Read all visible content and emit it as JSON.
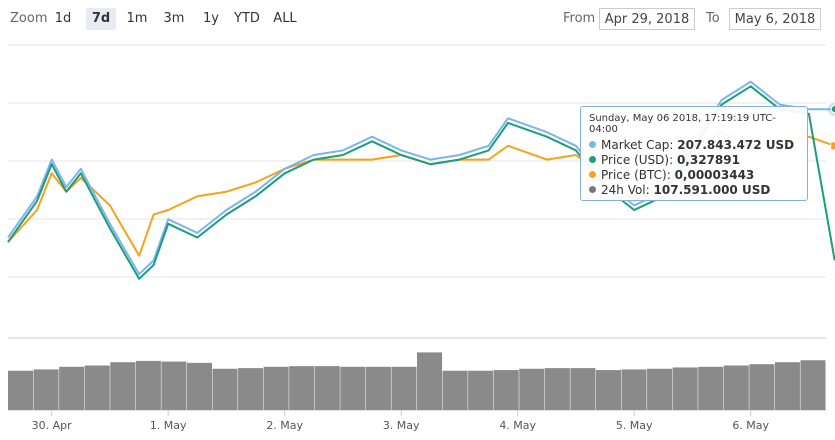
{
  "toolbar": {
    "zoom_label": "Zoom",
    "zoom_buttons": [
      "1d",
      "7d",
      "1m",
      "3m",
      "1y",
      "YTD",
      "ALL"
    ],
    "active": "7d",
    "from_label": "From",
    "from_value": "Apr 29, 2018",
    "to_label": "To",
    "to_value": "May 6, 2018"
  },
  "tooltip": {
    "header": "Sunday, May 06 2018, 17:19:19 UTC-04:00",
    "rows": [
      {
        "color": "#7cb5ec",
        "label": "Market Cap",
        "value": "207.843.472 USD"
      },
      {
        "color": "#1a9e7c",
        "label": "Price (USD)",
        "value": "0,327891"
      },
      {
        "color": "#f7a21b",
        "label": "Price (BTC)",
        "value": "0,00003443"
      },
      {
        "color": "#777777",
        "label": "24h Vol",
        "value": "107.591.000 USD"
      }
    ]
  },
  "chart_data": {
    "type": "line",
    "x_tick_labels": [
      "30. Apr",
      "1. May",
      "2. May",
      "3. May",
      "4. May",
      "5. May",
      "6. May"
    ],
    "x": [
      "2018-04-29T15:00",
      "2018-04-29T21:00",
      "2018-04-30T00:00",
      "2018-04-30T03:00",
      "2018-04-30T06:00",
      "2018-04-30T12:00",
      "2018-04-30T18:00",
      "2018-04-30T21:00",
      "2018-05-01T00:00",
      "2018-05-01T06:00",
      "2018-05-01T12:00",
      "2018-05-01T18:00",
      "2018-05-02T00:00",
      "2018-05-02T06:00",
      "2018-05-02T12:00",
      "2018-05-02T18:00",
      "2018-05-03T00:00",
      "2018-05-03T06:00",
      "2018-05-03T12:00",
      "2018-05-03T18:00",
      "2018-05-03T22:00",
      "2018-05-04T06:00",
      "2018-05-04T12:00",
      "2018-05-04T18:00",
      "2018-05-05T00:00",
      "2018-05-05T06:00",
      "2018-05-05T12:00",
      "2018-05-05T18:00",
      "2018-05-06T00:00",
      "2018-05-06T06:00",
      "2018-05-06T12:00",
      "2018-05-06T17:19"
    ],
    "series": [
      {
        "name": "Market Cap",
        "color": "#7cb5ec",
        "values": [
          0.38,
          0.47,
          0.55,
          0.49,
          0.53,
          0.41,
          0.3,
          0.33,
          0.42,
          0.39,
          0.44,
          0.48,
          0.53,
          0.56,
          0.57,
          0.6,
          0.57,
          0.55,
          0.56,
          0.58,
          0.64,
          0.61,
          0.58,
          0.5,
          0.45,
          0.48,
          0.58,
          0.68,
          0.72,
          0.67,
          0.66,
          0.66
        ]
      },
      {
        "name": "Price (USD)",
        "color": "#1a9e7c",
        "values": [
          0.37,
          0.46,
          0.54,
          0.48,
          0.52,
          0.4,
          0.29,
          0.32,
          0.41,
          0.38,
          0.43,
          0.47,
          0.52,
          0.55,
          0.56,
          0.59,
          0.56,
          0.54,
          0.55,
          0.57,
          0.63,
          0.6,
          0.57,
          0.49,
          0.44,
          0.47,
          0.57,
          0.67,
          0.71,
          0.66,
          0.65,
          0.33
        ]
      },
      {
        "name": "Price (BTC)",
        "color": "#f7a21b",
        "values": [
          0.37,
          0.44,
          0.52,
          0.48,
          0.51,
          0.45,
          0.34,
          0.43,
          0.44,
          0.47,
          0.48,
          0.5,
          0.53,
          0.55,
          0.55,
          0.55,
          0.56,
          0.54,
          0.55,
          0.55,
          0.58,
          0.55,
          0.56,
          0.51,
          0.46,
          0.49,
          0.57,
          0.61,
          0.58,
          0.59,
          0.6,
          0.58
        ]
      },
      {
        "name": "24h Vol",
        "color": "#777777",
        "values": [
          60,
          62,
          66,
          68,
          73,
          75,
          74,
          72,
          63,
          64,
          66,
          67,
          67,
          66,
          66,
          66,
          88,
          60,
          60,
          61,
          63,
          64,
          64,
          61,
          62,
          63,
          65,
          66,
          68,
          70,
          73,
          76
        ]
      }
    ],
    "y_range": [
      0.2,
      0.8
    ],
    "volume_range": [
      0,
      110
    ],
    "grid": true
  }
}
